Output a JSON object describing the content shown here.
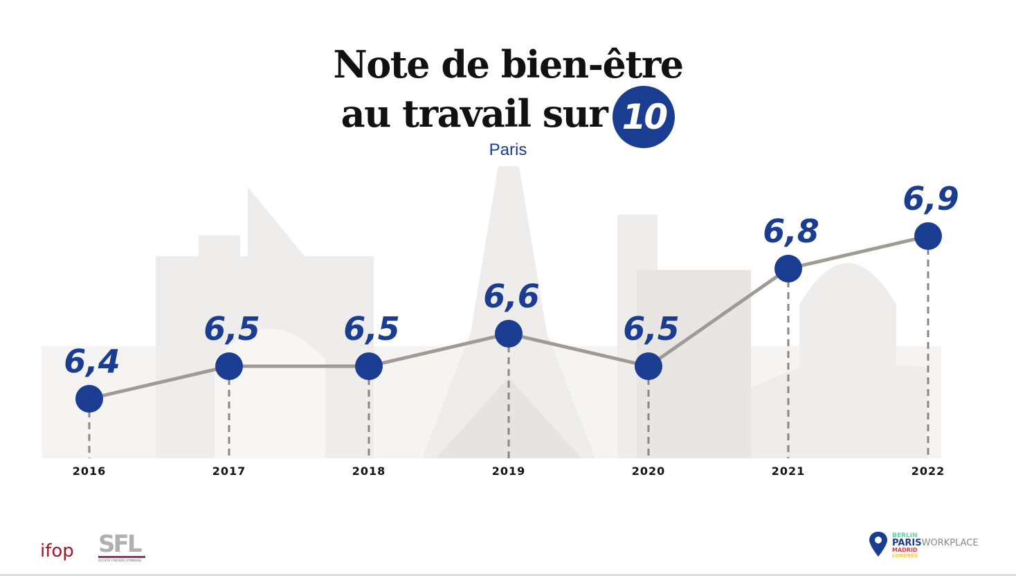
{
  "title_line1": "Note de bien-être",
  "title_line2": "au travail sur",
  "title_badge": "10",
  "subtitle": "Paris",
  "chart_data": {
    "type": "line",
    "title": "Note de bien-être au travail sur 10",
    "subtitle": "Paris",
    "categories": [
      "2016",
      "2017",
      "2018",
      "2019",
      "2020",
      "2021",
      "2022"
    ],
    "values": [
      6.4,
      6.5,
      6.5,
      6.6,
      6.5,
      6.8,
      6.9
    ],
    "value_labels": [
      "6,4",
      "6,5",
      "6,5",
      "6,6",
      "6,5",
      "6,8",
      "6,9"
    ],
    "line_color": "#a09a95",
    "marker_color": "#1b3d91",
    "grid": false
  },
  "logos": {
    "ifop": "ifop",
    "sfl": "SFL",
    "sfl_tagline": "SOCIETE FONCIERE LYONNAISE",
    "workplace": {
      "berlin": "BERLIN",
      "paris": "PARIS",
      "workplace": "WORKPLACE",
      "madrid": "MADRID",
      "londres": "LONDRES"
    }
  },
  "colors": {
    "accent": "#1b3d91",
    "skyline": "#ece9e6"
  }
}
